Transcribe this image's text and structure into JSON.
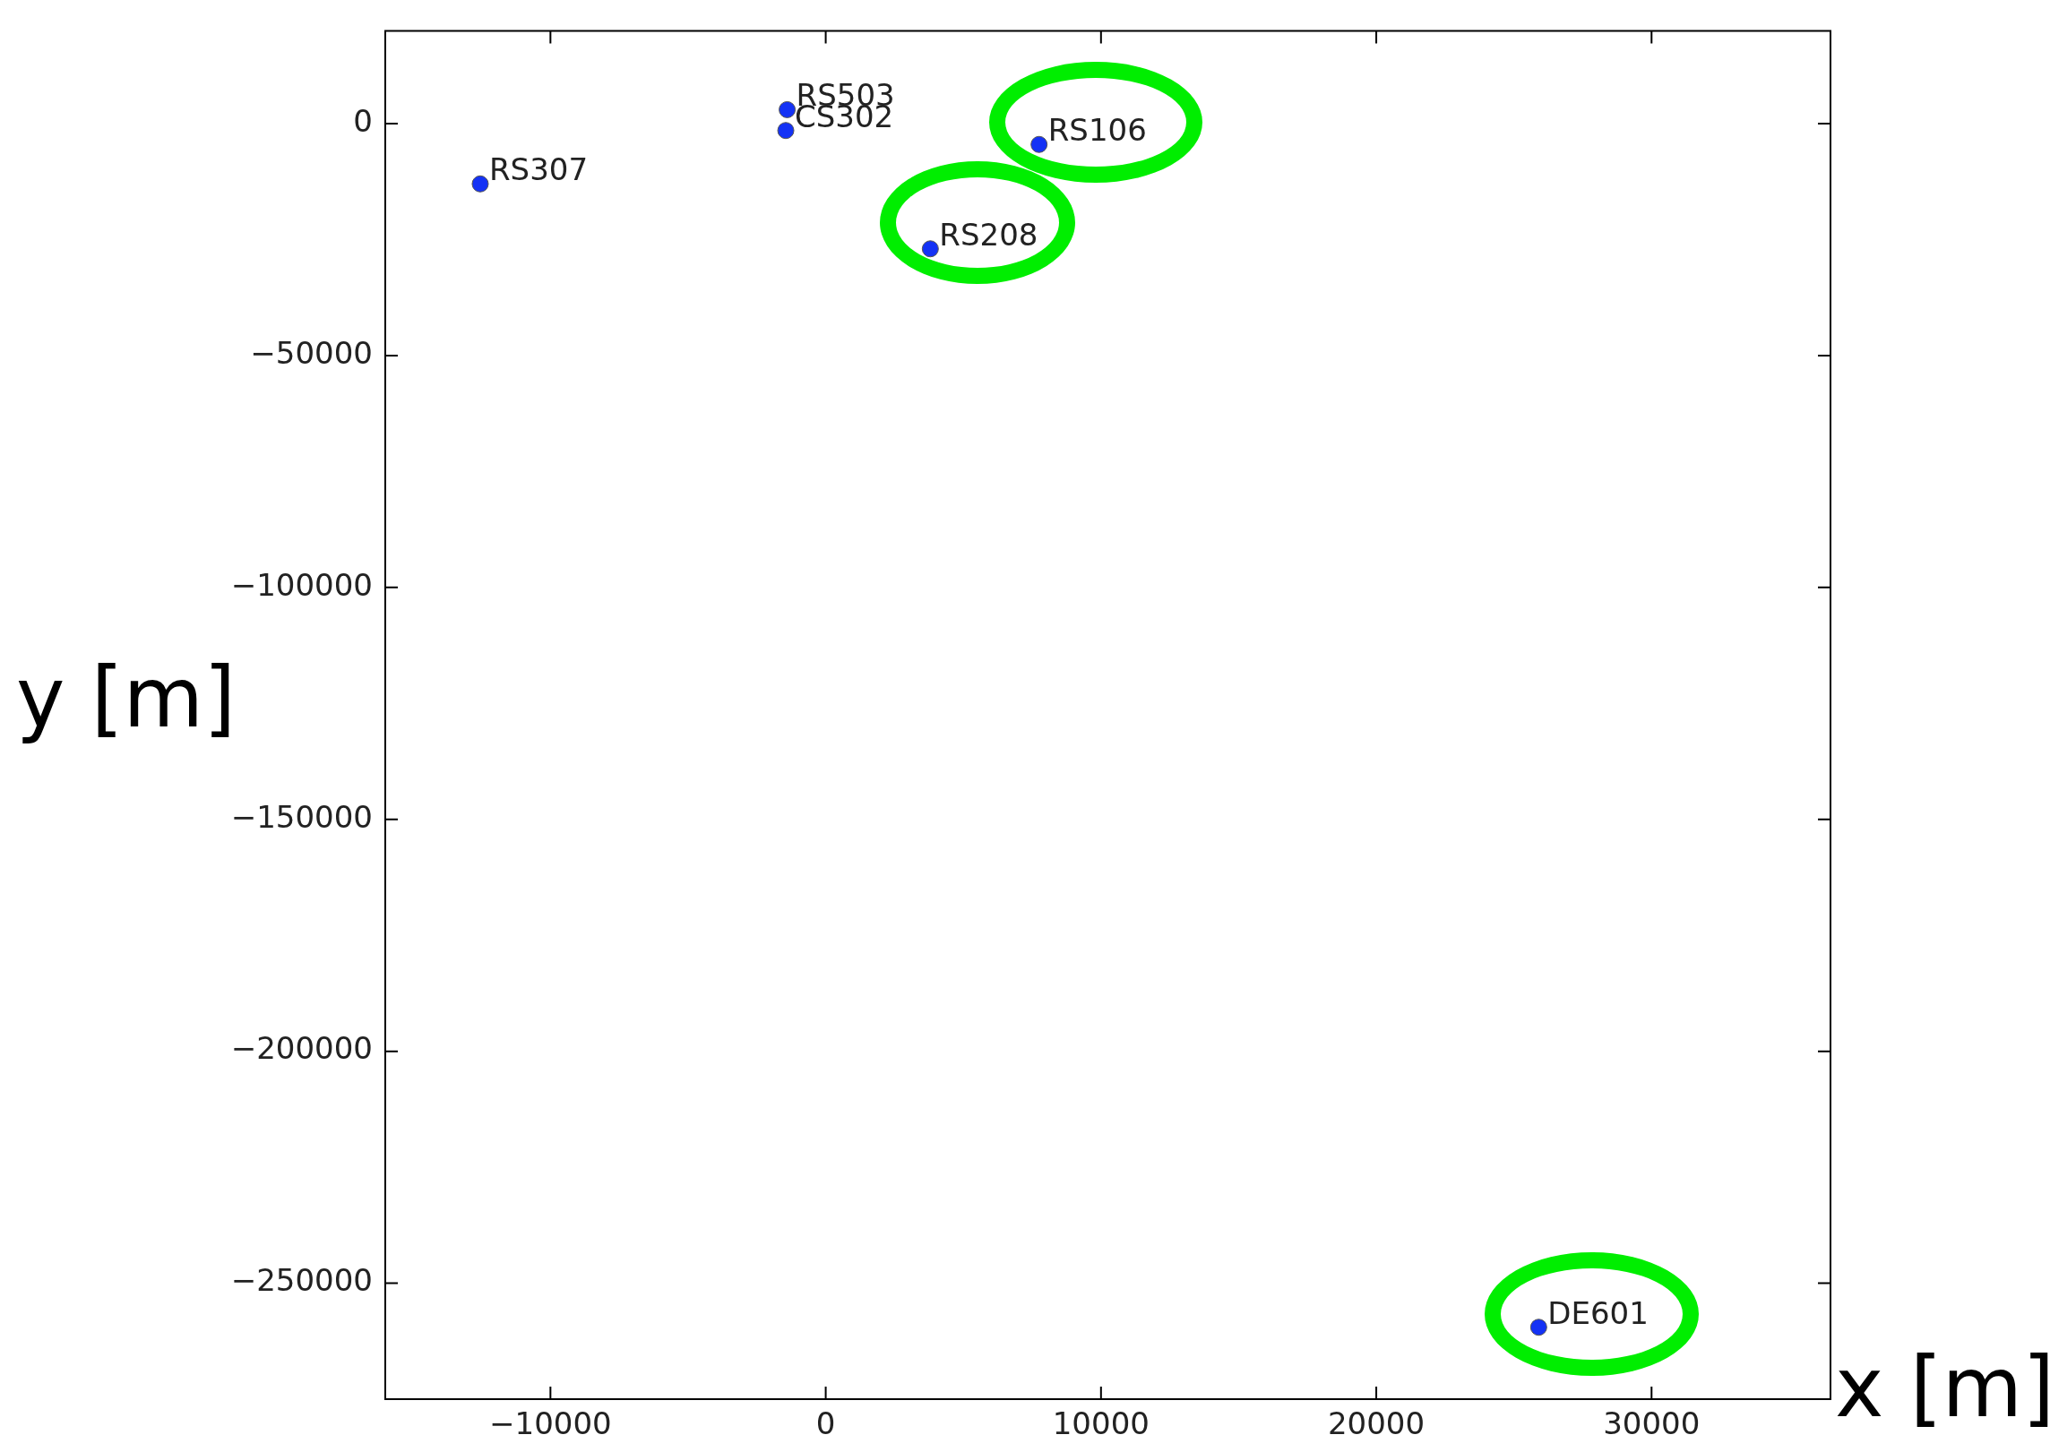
{
  "chart_data": {
    "type": "scatter",
    "xlabel": "x [m]",
    "ylabel": "y [m]",
    "series": [
      {
        "color": "#1432f5",
        "x": [
          -1400,
          -1450,
          -12550,
          7750,
          3800,
          25900
        ],
        "values": [
          3000,
          -1500,
          -13000,
          -4500,
          -27000,
          -259500
        ]
      }
    ],
    "xlim": [
      -16000,
      36500
    ],
    "ylim": [
      -275000,
      20000
    ],
    "xticks": [
      -10000,
      0,
      10000,
      20000,
      30000
    ],
    "yticks": [
      -250000,
      -200000,
      -150000,
      -100000,
      -50000,
      0
    ],
    "grid": false,
    "legend": false,
    "marker": "circle",
    "annotations": [
      {
        "text": "RS503",
        "x": -1400,
        "y": 3000
      },
      {
        "text": "CS302",
        "x": -1450,
        "y": -1500
      },
      {
        "text": "RS307",
        "x": -12550,
        "y": -13000
      },
      {
        "text": "RS106",
        "x": 7750,
        "y": -4500
      },
      {
        "text": "RS208",
        "x": 3800,
        "y": -27000
      },
      {
        "text": "DE601",
        "x": 25900,
        "y": -259500
      }
    ]
  }
}
